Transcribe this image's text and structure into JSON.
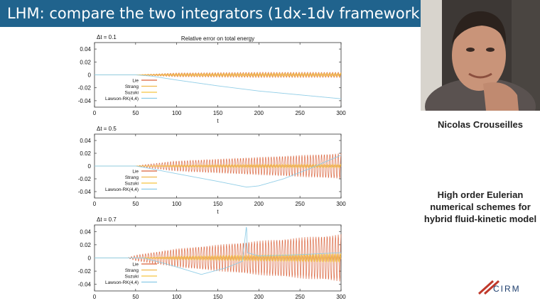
{
  "slide": {
    "title": "LHM: compare the two integrators (1dx-1dv framework)"
  },
  "sidebar": {
    "speaker_name": "Nicolas Crouseilles",
    "talk_title_lines": [
      "High order Eulerian",
      "numerical schemes for",
      "hybrid fluid-kinetic model"
    ],
    "logo_text": "CIRM"
  },
  "colors": {
    "title_bar": "#20638d",
    "lie": "#d9623b",
    "strang": "#f0b84a",
    "suzuki": "#f5c341",
    "lawson": "#8ccbe6"
  },
  "chart_data": [
    {
      "type": "line",
      "title": "Relative error on total energy",
      "annotation": "Δt = 0.1",
      "xlabel": "t",
      "ylabel": "",
      "xlim": [
        0,
        300
      ],
      "ylim": [
        -0.05,
        0.05
      ],
      "xticks": [
        0,
        50,
        100,
        150,
        200,
        250,
        300
      ],
      "yticks": [
        0.04,
        0.02,
        0,
        -0.02,
        -0.04
      ],
      "legend_position": "bottom-left",
      "series": [
        {
          "name": "Lie",
          "color": "#d9623b",
          "points": [
            [
              0,
              0
            ],
            [
              50,
              0
            ],
            [
              100,
              0.003
            ],
            [
              200,
              0.004
            ],
            [
              300,
              0.004
            ]
          ]
        },
        {
          "name": "Strang",
          "color": "#f0b84a",
          "points": [
            [
              0,
              0
            ],
            [
              50,
              0
            ],
            [
              100,
              0.002
            ],
            [
              200,
              0.003
            ],
            [
              300,
              0.003
            ]
          ]
        },
        {
          "name": "Suzuki",
          "color": "#f5c341",
          "points": [
            [
              0,
              0
            ],
            [
              50,
              0
            ],
            [
              100,
              0.002
            ],
            [
              200,
              0.002
            ],
            [
              300,
              0.002
            ]
          ]
        },
        {
          "name": "Lawson-RK(4,4)",
          "color": "#8ccbe6",
          "points": [
            [
              0,
              0
            ],
            [
              50,
              0
            ],
            [
              70,
              -0.002
            ],
            [
              100,
              -0.008
            ],
            [
              150,
              -0.017
            ],
            [
              200,
              -0.025
            ],
            [
              250,
              -0.031
            ],
            [
              300,
              -0.037
            ]
          ]
        }
      ]
    },
    {
      "type": "line",
      "title": "",
      "annotation": "Δt = 0.5",
      "xlabel": "t",
      "ylabel": "",
      "xlim": [
        0,
        300
      ],
      "ylim": [
        -0.05,
        0.05
      ],
      "xticks": [
        0,
        50,
        100,
        150,
        200,
        250,
        300
      ],
      "yticks": [
        0.04,
        0.02,
        0,
        -0.02,
        -0.04
      ],
      "legend_position": "bottom-left",
      "series": [
        {
          "name": "Lie",
          "color": "#d9623b",
          "points": [
            [
              0,
              0
            ],
            [
              50,
              0
            ],
            [
              60,
              0.002
            ],
            [
              100,
              0.008
            ],
            [
              150,
              0.011
            ],
            [
              200,
              0.014
            ],
            [
              250,
              0.017
            ],
            [
              300,
              0.02
            ]
          ]
        },
        {
          "name": "Strang",
          "color": "#f0b84a",
          "points": [
            [
              0,
              0
            ],
            [
              50,
              0
            ],
            [
              100,
              0.002
            ],
            [
              200,
              0.003
            ],
            [
              300,
              0.003
            ]
          ]
        },
        {
          "name": "Suzuki",
          "color": "#f5c341",
          "points": [
            [
              0,
              0
            ],
            [
              50,
              0
            ],
            [
              100,
              0.001
            ],
            [
              200,
              0.002
            ],
            [
              300,
              0.002
            ]
          ]
        },
        {
          "name": "Lawson-RK(4,4)",
          "color": "#8ccbe6",
          "points": [
            [
              0,
              0
            ],
            [
              50,
              0
            ],
            [
              60,
              -0.002
            ],
            [
              100,
              -0.012
            ],
            [
              150,
              -0.024
            ],
            [
              185,
              -0.033
            ],
            [
              200,
              -0.031
            ],
            [
              230,
              -0.02
            ],
            [
              260,
              -0.005
            ],
            [
              300,
              0.017
            ]
          ]
        }
      ]
    },
    {
      "type": "line",
      "title": "",
      "annotation": "Δt = 0.7",
      "xlabel": "",
      "ylabel": "",
      "xlim": [
        0,
        300
      ],
      "ylim": [
        -0.05,
        0.05
      ],
      "xticks": [
        0,
        50,
        100,
        150,
        200,
        250,
        300
      ],
      "yticks": [
        0.04,
        0.02,
        0,
        -0.02,
        -0.04
      ],
      "legend_position": "bottom-left",
      "series": [
        {
          "name": "Lie",
          "color": "#d9623b",
          "points": [
            [
              0,
              0
            ],
            [
              40,
              0
            ],
            [
              50,
              0.004
            ],
            [
              100,
              0.014
            ],
            [
              150,
              0.02
            ],
            [
              200,
              0.026
            ],
            [
              250,
              0.031
            ],
            [
              300,
              0.036
            ]
          ]
        },
        {
          "name": "Strang",
          "color": "#f0b84a",
          "points": [
            [
              0,
              0
            ],
            [
              50,
              0
            ],
            [
              100,
              0.003
            ],
            [
              200,
              0.005
            ],
            [
              300,
              0.007
            ]
          ]
        },
        {
          "name": "Suzuki",
          "color": "#f5c341",
          "points": [
            [
              0,
              0
            ],
            [
              50,
              0
            ],
            [
              100,
              0.002
            ],
            [
              200,
              0.004
            ],
            [
              300,
              0.006
            ]
          ]
        },
        {
          "name": "Lawson-RK(4,4)",
          "color": "#8ccbe6",
          "points": [
            [
              0,
              0
            ],
            [
              60,
              0
            ],
            [
              90,
              -0.01
            ],
            [
              130,
              -0.025
            ],
            [
              160,
              -0.015
            ],
            [
              180,
              -0.005
            ],
            [
              185,
              0.05
            ],
            [
              186,
              0.008
            ],
            [
              200,
              0.003
            ],
            [
              250,
              0.005
            ],
            [
              300,
              0.008
            ]
          ]
        }
      ]
    }
  ]
}
